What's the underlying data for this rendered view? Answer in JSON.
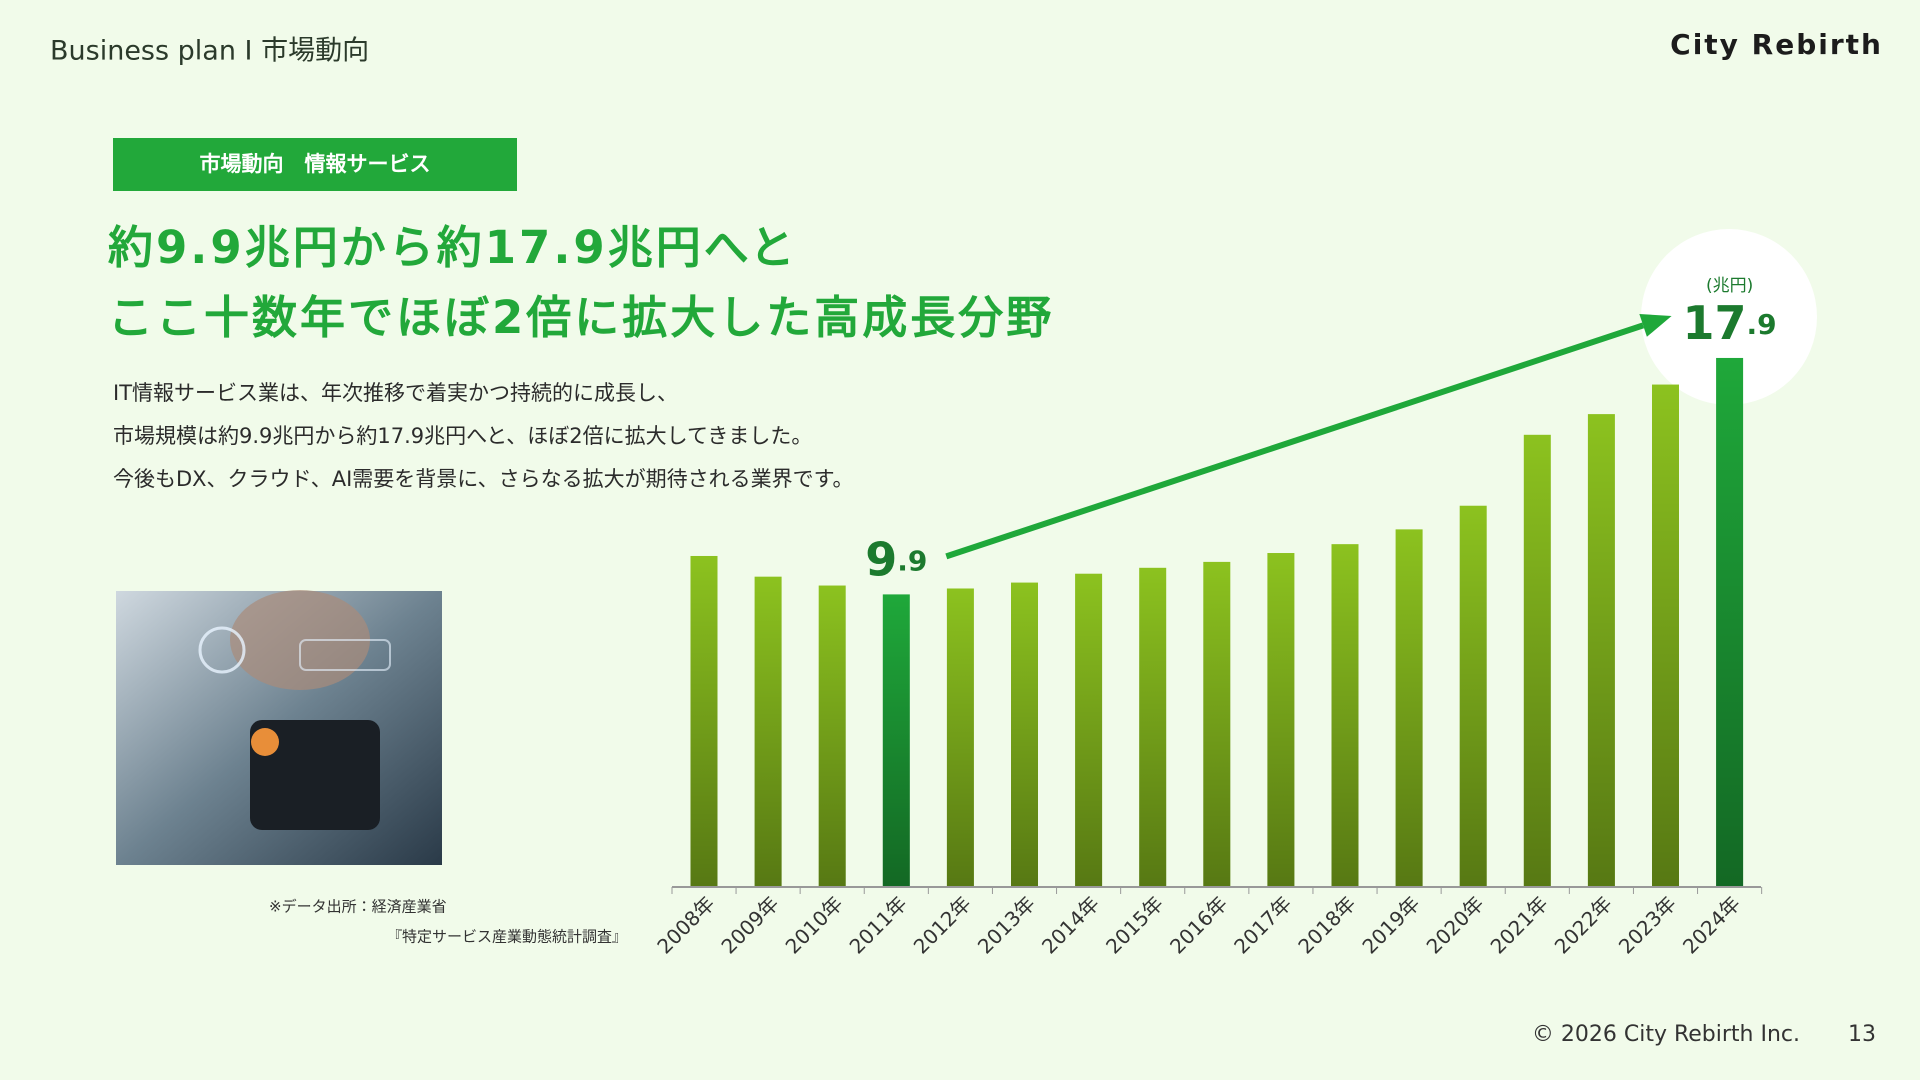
{
  "header": {
    "section": "Business plan I 市場動向",
    "brand": "City Rebirth"
  },
  "tag": "市場動向　情報サービス",
  "headline": [
    "約9.9兆円から約17.9兆円へと",
    "ここ十数年でほぼ2倍に拡大した高成長分野"
  ],
  "body": [
    "IT情報サービス業は、年次推移で着実かつ持続的に成長し、",
    "市場規模は約9.9兆円から約17.9兆円へと、ほぼ2倍に拡大してきました。",
    "今後もDX、クラウド、AI需要を背景に、さらなる拡大が期待される業界です。"
  ],
  "source": [
    "※データ出所：経済産業省",
    "『特定サービス産業動態統計調査』"
  ],
  "footer": {
    "copyright": "© 2026 City Rebirth Inc.",
    "page": "13"
  },
  "chart_data": {
    "type": "bar",
    "unit": "(兆円)",
    "categories": [
      "2008年",
      "2009年",
      "2010年",
      "2011年",
      "2012年",
      "2013年",
      "2014年",
      "2015年",
      "2016年",
      "2017年",
      "2018年",
      "2019年",
      "2020年",
      "2021年",
      "2022年",
      "2023年",
      "2024年"
    ],
    "values": [
      11.2,
      10.5,
      10.2,
      9.9,
      10.1,
      10.3,
      10.6,
      10.8,
      11.0,
      11.3,
      11.6,
      12.1,
      12.9,
      15.3,
      16.0,
      17.0,
      17.9
    ],
    "bar_colors": [
      "#8cc21f",
      "#8cc21f",
      "#8cc21f",
      "#1fa83a",
      "#8cc21f",
      "#8cc21f",
      "#8cc21f",
      "#8cc21f",
      "#8cc21f",
      "#8cc21f",
      "#8cc21f",
      "#8cc21f",
      "#8cc21f",
      "#8cc21f",
      "#8cc21f",
      "#8cc21f",
      "#1fa83a"
    ],
    "labeled": [
      3,
      16
    ],
    "ylim": [
      0,
      18
    ]
  }
}
